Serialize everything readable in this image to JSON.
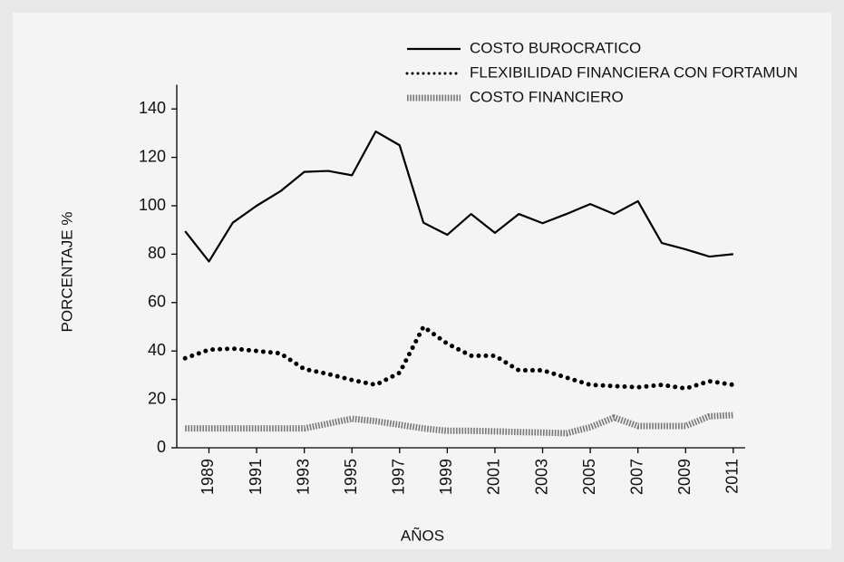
{
  "chart_data": {
    "type": "line",
    "x_label": "AÑOS",
    "y_label": "PORCENTAJE %",
    "x": [
      1988,
      1989,
      1990,
      1991,
      1992,
      1993,
      1994,
      1995,
      1996,
      1997,
      1998,
      1999,
      2000,
      2001,
      2002,
      2003,
      2004,
      2005,
      2006,
      2007,
      2008,
      2009,
      2010,
      2011
    ],
    "series": [
      {
        "name": "COSTO BUROCRATICO",
        "color": "#000000",
        "style": "solid",
        "values": [
          89.5,
          77,
          93,
          100,
          106,
          114,
          114.4,
          112.6,
          130.7,
          125,
          93,
          88,
          96.6,
          88.8,
          96.6,
          92.8,
          96.6,
          100.7,
          96.6,
          101.9,
          84.6,
          82,
          79,
          80
        ]
      },
      {
        "name": "FLEXIBILIDAD FINANCIERA CON FORTAMUN",
        "color": "#000000",
        "style": "dotted",
        "values": [
          37,
          40.5,
          41,
          40,
          39,
          32.5,
          30.5,
          28,
          26,
          31,
          50,
          43,
          38,
          38,
          32,
          32,
          29,
          26,
          25.5,
          25,
          26,
          24.5,
          27.5,
          26
        ]
      },
      {
        "name": "COSTO FINANCIERO",
        "color": "#777777",
        "style": "hatched",
        "values": [
          8,
          8,
          8,
          8,
          8,
          8,
          10,
          12,
          11,
          9.5,
          8,
          7,
          7,
          6.8,
          6.5,
          6.3,
          6,
          8.5,
          12.5,
          9,
          9,
          9,
          13,
          13.5
        ]
      }
    ],
    "xlim": [
      1987.65,
      2011.5
    ],
    "xticks": [
      1989,
      1991,
      1993,
      1995,
      1997,
      1999,
      2001,
      2003,
      2005,
      2007,
      2009,
      2011
    ],
    "ylim": [
      0,
      150
    ],
    "yticks": [
      0,
      20,
      40,
      60,
      80,
      100,
      120,
      140
    ],
    "legend": "top-right"
  }
}
